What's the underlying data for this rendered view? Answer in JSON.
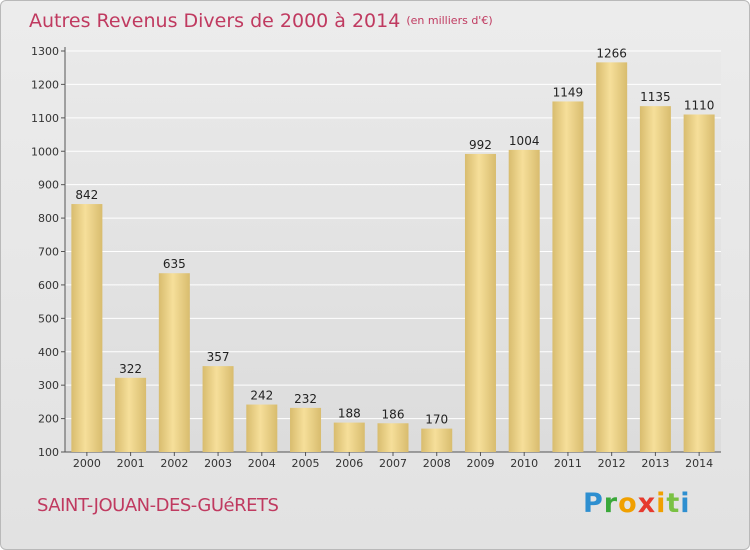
{
  "title": "Autres Revenus Divers de 2000 à 2014",
  "unit": "(en milliers d'€)",
  "place": "SAINT-JOUAN-DES-GUéRETS",
  "logo": {
    "text": "Proxiti",
    "colors": [
      "#2e8fd0",
      "#3aa83a",
      "#f0a000",
      "#e63a2e",
      "#f0a000",
      "#7ac143",
      "#2e8fd0"
    ]
  },
  "colors": {
    "title": "#c03a60",
    "bar_light": "#f6df9a",
    "bar_dark": "#d8bc6e"
  },
  "chart_data": {
    "type": "bar",
    "categories": [
      "2000",
      "2001",
      "2002",
      "2003",
      "2004",
      "2005",
      "2006",
      "2007",
      "2008",
      "2009",
      "2010",
      "2011",
      "2012",
      "2013",
      "2014"
    ],
    "values": [
      842,
      322,
      635,
      357,
      242,
      232,
      188,
      186,
      170,
      992,
      1004,
      1149,
      1266,
      1135,
      1110
    ],
    "ylim": [
      100,
      1300
    ],
    "yticks": [
      100,
      200,
      300,
      400,
      500,
      600,
      700,
      800,
      900,
      1000,
      1100,
      1200,
      1300
    ],
    "grid": true
  }
}
